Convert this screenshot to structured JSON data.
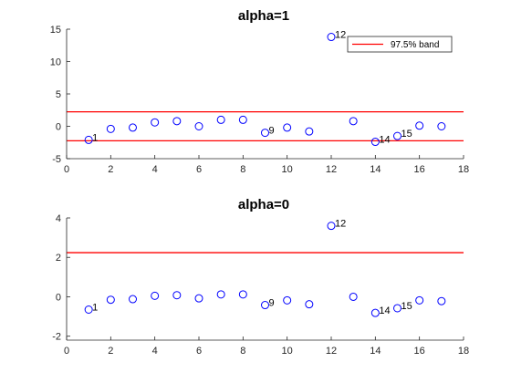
{
  "chart_data": [
    {
      "type": "scatter",
      "title": "alpha=1",
      "xlim": [
        0,
        18
      ],
      "ylim": [
        -5,
        15
      ],
      "xticks": [
        0,
        2,
        4,
        6,
        8,
        10,
        12,
        14,
        16,
        18
      ],
      "yticks": [
        -5,
        0,
        5,
        10,
        15
      ],
      "x": [
        1,
        2,
        3,
        4,
        5,
        6,
        7,
        8,
        9,
        10,
        11,
        12,
        13,
        14,
        15,
        16,
        17
      ],
      "y": [
        -2.1,
        -0.4,
        -0.2,
        0.6,
        0.8,
        0.0,
        1.0,
        1.0,
        -1.0,
        -0.2,
        -0.8,
        13.8,
        0.8,
        -2.4,
        -1.5,
        0.1,
        0.0
      ],
      "point_labels": [
        {
          "x": 1,
          "text": "1"
        },
        {
          "x": 9,
          "text": "9"
        },
        {
          "x": 12,
          "text": "12"
        },
        {
          "x": 14,
          "text": "14"
        },
        {
          "x": 15,
          "text": "15"
        }
      ],
      "bands": [
        2.24,
        -2.24
      ],
      "legend": {
        "label": "97.5% band",
        "position": "top-right"
      },
      "marker_color": "#0000ff",
      "band_color": "#ff0000",
      "grid": false
    },
    {
      "type": "scatter",
      "title": "alpha=0",
      "xlim": [
        0,
        18
      ],
      "ylim": [
        -2.2,
        4
      ],
      "xticks": [
        0,
        2,
        4,
        6,
        8,
        10,
        12,
        14,
        16,
        18
      ],
      "yticks": [
        -2,
        0,
        2,
        4
      ],
      "x": [
        1,
        2,
        3,
        4,
        5,
        6,
        7,
        8,
        9,
        10,
        11,
        12,
        13,
        14,
        15,
        16,
        17
      ],
      "y": [
        -0.65,
        -0.15,
        -0.12,
        0.05,
        0.08,
        -0.08,
        0.12,
        0.12,
        -0.42,
        -0.18,
        -0.38,
        3.6,
        0.0,
        -0.82,
        -0.58,
        -0.18,
        -0.22
      ],
      "point_labels": [
        {
          "x": 1,
          "text": "1"
        },
        {
          "x": 9,
          "text": "9"
        },
        {
          "x": 12,
          "text": "12"
        },
        {
          "x": 14,
          "text": "14"
        },
        {
          "x": 15,
          "text": "15"
        }
      ],
      "bands": [
        2.24,
        -2.24
      ],
      "marker_color": "#0000ff",
      "band_color": "#ff0000",
      "grid": false
    }
  ]
}
